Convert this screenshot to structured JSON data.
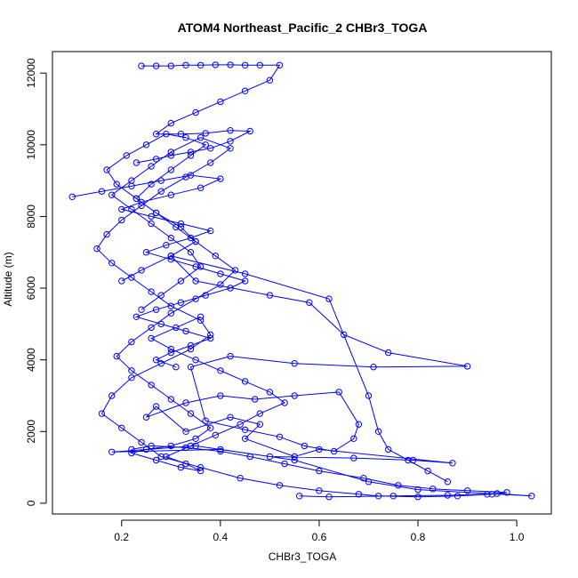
{
  "chart_data": {
    "type": "line",
    "title": "ATOM4 Northeast_Pacific_2 CHBr3_TOGA",
    "xlabel": "CHBr3_TOGA",
    "ylabel": "Altitude (m)",
    "xlim": [
      0.06,
      1.07
    ],
    "ylim": [
      -300,
      12600
    ],
    "xticks": [
      0.2,
      0.4,
      0.6,
      0.8,
      1.0
    ],
    "xtick_labels": [
      "0.2",
      "0.4",
      "0.6",
      "0.8",
      "1.0"
    ],
    "yticks": [
      0,
      2000,
      4000,
      6000,
      8000,
      10000,
      12000
    ],
    "ytick_labels": [
      "0",
      "2000",
      "4000",
      "6000",
      "8000",
      "10000",
      "12000"
    ],
    "series_color": "#0000ff",
    "marker": "open-circle",
    "grid": false,
    "series": [
      {
        "x": [
          0.56,
          0.62,
          0.75,
          0.86,
          0.94,
          0.96,
          1.03,
          0.8,
          0.7,
          0.55,
          0.4,
          0.18,
          0.35,
          0.5,
          0.67,
          0.79,
          0.87,
          0.6,
          0.55,
          0.45,
          0.48,
          0.42,
          0.33,
          0.27,
          0.25,
          0.33,
          0.4,
          0.47,
          0.55,
          0.64,
          0.68,
          0.67,
          0.63,
          0.57,
          0.52,
          0.45,
          0.37,
          0.34,
          0.42,
          0.55,
          0.71,
          0.9,
          0.74,
          0.65,
          0.58,
          0.5,
          0.35,
          0.3,
          0.45,
          0.62,
          0.7,
          0.72,
          0.74,
          0.78,
          0.82,
          0.86
        ],
        "y": [
          200,
          180,
          200,
          220,
          250,
          270,
          200,
          380,
          600,
          1200,
          1500,
          1430,
          1600,
          1300,
          1260,
          1200,
          1120,
          1500,
          1300,
          1800,
          2200,
          2400,
          2000,
          2700,
          2400,
          2800,
          3000,
          2900,
          3000,
          3100,
          2200,
          1800,
          1450,
          1600,
          1850,
          2050,
          2300,
          3800,
          4100,
          3900,
          3800,
          3820,
          4200,
          4700,
          5600,
          5800,
          6200,
          6900,
          6400,
          5700,
          3000,
          2000,
          1500,
          1200,
          900,
          600
        ]
      },
      {
        "x": [
          0.22,
          0.26,
          0.33,
          0.4,
          0.46,
          0.53,
          0.6,
          0.69,
          0.76,
          0.83,
          0.9,
          0.98,
          0.95,
          0.88,
          0.8,
          0.72,
          0.68,
          0.6,
          0.52,
          0.44,
          0.36,
          0.28,
          0.24,
          0.2,
          0.16,
          0.18,
          0.22,
          0.28,
          0.34,
          0.38,
          0.36,
          0.3,
          0.26,
          0.22,
          0.18,
          0.15,
          0.17,
          0.2,
          0.24,
          0.28,
          0.33,
          0.38,
          0.42,
          0.36,
          0.3,
          0.26,
          0.22,
          0.18,
          0.22,
          0.26,
          0.3,
          0.34,
          0.36,
          0.32,
          0.28,
          0.24
        ],
        "y": [
          1500,
          1600,
          1550,
          1450,
          1300,
          1100,
          900,
          700,
          500,
          400,
          350,
          300,
          250,
          200,
          180,
          200,
          250,
          350,
          500,
          700,
          1000,
          1300,
          1700,
          2100,
          2500,
          3000,
          3500,
          3900,
          4300,
          4700,
          5100,
          5500,
          5900,
          6300,
          6700,
          7100,
          7500,
          7900,
          8300,
          8700,
          9100,
          9500,
          9900,
          10200,
          9800,
          9400,
          9000,
          8600,
          8200,
          7800,
          7400,
          7000,
          6600,
          6200,
          5800,
          5400
        ]
      },
      {
        "x": [
          0.2,
          0.24,
          0.3,
          0.35,
          0.32,
          0.27,
          0.23,
          0.19,
          0.17,
          0.21,
          0.25,
          0.29,
          0.33,
          0.37,
          0.34,
          0.3,
          0.26,
          0.23,
          0.27,
          0.31,
          0.35,
          0.39,
          0.43,
          0.4,
          0.35,
          0.3,
          0.26,
          0.22,
          0.19,
          0.22,
          0.26,
          0.3,
          0.34,
          0.38,
          0.35,
          0.3,
          0.25,
          0.22,
          0.27,
          0.32,
          0.36,
          0.33,
          0.29,
          0.34,
          0.39,
          0.44,
          0.48,
          0.53,
          0.5,
          0.45,
          0.4,
          0.35,
          0.3,
          0.26,
          0.31,
          0.36
        ],
        "y": [
          6200,
          6500,
          6900,
          7300,
          7700,
          8100,
          8500,
          8900,
          9300,
          9700,
          10000,
          10300,
          10200,
          10000,
          9700,
          9300,
          8900,
          8500,
          8100,
          7700,
          7300,
          6900,
          6500,
          6100,
          5700,
          5300,
          4900,
          4500,
          4100,
          3700,
          3300,
          2900,
          2500,
          2100,
          1800,
          1600,
          1500,
          1400,
          1200,
          1000,
          900,
          1100,
          1300,
          1600,
          1900,
          2200,
          2500,
          2800,
          3100,
          3400,
          3700,
          4000,
          4300,
          4600,
          4900,
          5200
        ]
      },
      {
        "x": [
          0.1,
          0.16,
          0.22,
          0.28,
          0.34,
          0.4,
          0.36,
          0.3,
          0.24,
          0.2,
          0.26,
          0.32,
          0.38,
          0.34,
          0.29,
          0.25,
          0.3,
          0.35,
          0.4,
          0.45,
          0.42,
          0.37,
          0.32,
          0.27,
          0.23,
          0.28,
          0.33,
          0.38,
          0.34,
          0.3,
          0.27,
          0.31
        ],
        "y": [
          8550,
          8700,
          8850,
          9000,
          9150,
          9050,
          8800,
          8600,
          8400,
          8200,
          8000,
          7800,
          7600,
          7400,
          7200,
          7000,
          6800,
          6600,
          6400,
          6200,
          6000,
          5800,
          5600,
          5400,
          5200,
          5000,
          4800,
          4600,
          4400,
          4200,
          4000,
          3800
        ]
      },
      {
        "x": [
          0.24,
          0.27,
          0.3,
          0.33,
          0.36,
          0.39,
          0.42,
          0.45,
          0.48,
          0.52,
          0.5,
          0.45,
          0.4,
          0.35,
          0.3,
          0.27,
          0.32,
          0.37,
          0.42,
          0.46,
          0.42,
          0.38,
          0.34,
          0.3,
          0.27,
          0.23
        ],
        "y": [
          12200,
          12200,
          12200,
          12220,
          12220,
          12230,
          12230,
          12220,
          12220,
          12220,
          11800,
          11500,
          11200,
          10900,
          10600,
          10300,
          10300,
          10320,
          10400,
          10380,
          10100,
          9900,
          9800,
          9700,
          9600,
          9500
        ]
      }
    ]
  }
}
